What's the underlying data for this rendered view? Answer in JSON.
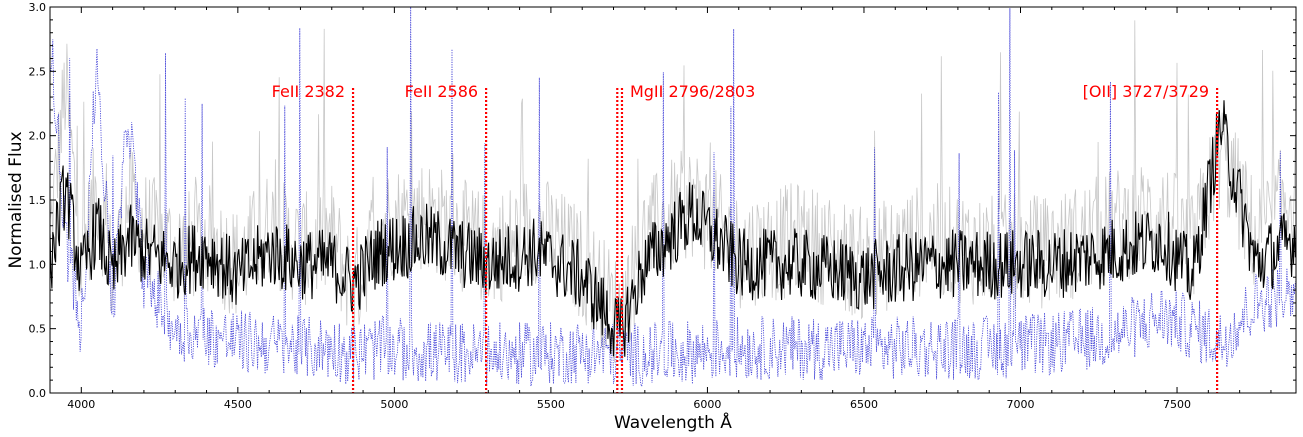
{
  "chart_data": {
    "type": "line",
    "xlabel": "Wavelength Å",
    "ylabel": "Normalised Flux",
    "xlim": [
      3900,
      7880
    ],
    "ylim": [
      0.0,
      3.0
    ],
    "xticks": [
      4000,
      4500,
      5000,
      5500,
      6000,
      6500,
      7000,
      7500
    ],
    "yticks": [
      0.0,
      0.5,
      1.0,
      1.5,
      2.0,
      2.5,
      3.0
    ],
    "ytick_labels": [
      "0.0",
      "0.5",
      "1.0",
      "1.5",
      "2.0",
      "2.5",
      "3.0"
    ],
    "grid": false,
    "series": [
      {
        "role": "raw spectrum",
        "color": "#c8c8c8",
        "style": "solid",
        "x": [
          3900,
          3950,
          4000,
          4050,
          4100,
          4150,
          4200,
          4300,
          4400,
          4500,
          4600,
          4700,
          4800,
          4870,
          4950,
          5100,
          5300,
          5450,
          5600,
          5720,
          5800,
          5950,
          6100,
          6300,
          6500,
          6700,
          6900,
          7100,
          7300,
          7450,
          7550,
          7640,
          7750,
          7880
        ],
        "y": [
          1.2,
          2.4,
          1.0,
          1.6,
          0.9,
          1.5,
          1.3,
          1.1,
          1.2,
          1.0,
          1.3,
          1.1,
          1.2,
          0.8,
          1.3,
          1.4,
          1.1,
          1.3,
          1.0,
          0.6,
          1.2,
          1.5,
          1.1,
          1.2,
          1.0,
          1.2,
          1.1,
          1.1,
          1.3,
          1.4,
          1.1,
          1.9,
          1.2,
          1.6
        ]
      },
      {
        "role": "smoothed spectrum",
        "color": "#000000",
        "style": "solid",
        "x": [
          3900,
          3950,
          4000,
          4050,
          4100,
          4150,
          4200,
          4300,
          4400,
          4500,
          4600,
          4700,
          4800,
          4870,
          4950,
          5100,
          5300,
          5450,
          5600,
          5720,
          5800,
          5950,
          6100,
          6300,
          6500,
          6700,
          6900,
          7100,
          7300,
          7450,
          7550,
          7640,
          7750,
          7880
        ],
        "y": [
          1.0,
          1.6,
          0.9,
          1.3,
          0.9,
          1.2,
          1.1,
          1.0,
          1.1,
          0.9,
          1.1,
          1.0,
          1.0,
          0.85,
          1.1,
          1.2,
          1.0,
          1.1,
          0.9,
          0.45,
          1.0,
          1.4,
          1.0,
          1.0,
          0.9,
          1.0,
          1.0,
          1.0,
          1.1,
          1.2,
          0.9,
          2.1,
          1.0,
          1.2
        ]
      },
      {
        "role": "error spectrum",
        "color": "#3b3bd6",
        "style": "dotted",
        "x": [
          3900,
          3950,
          4000,
          4050,
          4100,
          4150,
          4200,
          4300,
          4400,
          4500,
          4600,
          4700,
          4800,
          4870,
          4950,
          5100,
          5300,
          5450,
          5600,
          5720,
          5800,
          5950,
          6100,
          6300,
          6500,
          6700,
          6900,
          7100,
          7300,
          7450,
          7550,
          7640,
          7750,
          7880
        ],
        "y": [
          2.8,
          1.2,
          0.5,
          2.6,
          0.6,
          2.2,
          0.9,
          0.5,
          0.45,
          0.4,
          0.38,
          0.35,
          0.35,
          0.3,
          0.35,
          0.32,
          0.3,
          0.3,
          0.32,
          0.3,
          0.3,
          0.32,
          0.35,
          0.35,
          0.35,
          0.35,
          0.35,
          0.38,
          0.45,
          0.6,
          0.5,
          0.4,
          0.7,
          0.8
        ]
      }
    ],
    "annotations": [
      {
        "label": "FeII 2382",
        "x": 4868,
        "top": 2.37
      },
      {
        "label": "FeII 2586",
        "x": 5293,
        "top": 2.37
      },
      {
        "label": "MgII 2796/2803",
        "lines": [
          5712,
          5727
        ],
        "top": 2.37
      },
      {
        "label": "[OII] 3727/3729",
        "x": 7628,
        "top": 2.37
      }
    ],
    "annotation_color": "#ff0000"
  }
}
